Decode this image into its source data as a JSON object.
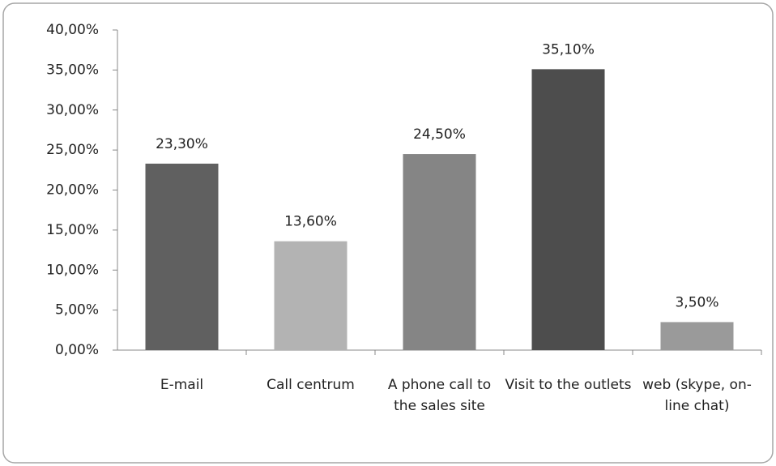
{
  "chart_data": {
    "type": "bar",
    "categories": [
      "E-mail",
      "Call centrum",
      "A phone call to the sales site",
      "Visit to the outlets",
      "web (skype, on-line chat)"
    ],
    "values": [
      23.3,
      13.6,
      24.5,
      35.1,
      3.5
    ],
    "value_labels": [
      "23,30%",
      "13,60%",
      "24,50%",
      "35,10%",
      "3,50%"
    ],
    "colors": [
      "#606060",
      "#b3b3b3",
      "#858585",
      "#4d4d4d",
      "#9a9a9a"
    ],
    "ylim": [
      0,
      40
    ],
    "yticks": [
      {
        "value": 0,
        "label": "0,00%"
      },
      {
        "value": 5,
        "label": "5,00%"
      },
      {
        "value": 10,
        "label": "10,00%"
      },
      {
        "value": 15,
        "label": "15,00%"
      },
      {
        "value": 20,
        "label": "20,00%"
      },
      {
        "value": 25,
        "label": "25,00%"
      },
      {
        "value": 30,
        "label": "30,00%"
      },
      {
        "value": 35,
        "label": "35,00%"
      },
      {
        "value": 40,
        "label": "40,00%"
      }
    ]
  }
}
